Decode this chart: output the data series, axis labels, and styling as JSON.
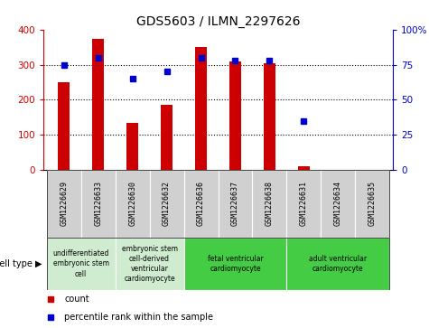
{
  "title": "GDS5603 / ILMN_2297626",
  "samples": [
    "GSM1226629",
    "GSM1226633",
    "GSM1226630",
    "GSM1226632",
    "GSM1226636",
    "GSM1226637",
    "GSM1226638",
    "GSM1226631",
    "GSM1226634",
    "GSM1226635"
  ],
  "counts": [
    250,
    375,
    135,
    185,
    350,
    310,
    305,
    10,
    0,
    0
  ],
  "percentiles": [
    75,
    80,
    65,
    70,
    80,
    78,
    78,
    35,
    null,
    null
  ],
  "left_ylim": [
    0,
    400
  ],
  "right_ylim": [
    0,
    100
  ],
  "left_yticks": [
    0,
    100,
    200,
    300,
    400
  ],
  "right_yticks": [
    0,
    25,
    50,
    75,
    100
  ],
  "right_yticklabels": [
    "0",
    "25",
    "50",
    "75",
    "100%"
  ],
  "bar_color": "#cc0000",
  "dot_color": "#0000cc",
  "cell_type_groups": [
    {
      "label": "undifferentiated\nembryonic stem\ncell",
      "span": [
        0,
        2
      ],
      "color": "#d0ecd0"
    },
    {
      "label": "embryonic stem\ncell-derived\nventricular\ncardiomyocyte",
      "span": [
        2,
        4
      ],
      "color": "#d0ecd0"
    },
    {
      "label": "fetal ventricular\ncardiomyocyte",
      "span": [
        4,
        7
      ],
      "color": "#44cc44"
    },
    {
      "label": "adult ventricular\ncardiomyocyte",
      "span": [
        7,
        10
      ],
      "color": "#44cc44"
    }
  ],
  "cell_type_label": "cell type",
  "legend_items": [
    {
      "color": "#cc0000",
      "label": "count"
    },
    {
      "color": "#0000cc",
      "label": "percentile rank within the sample"
    }
  ],
  "gray_bg": "#d0d0d0",
  "grid_yticks": [
    100,
    200,
    300
  ]
}
